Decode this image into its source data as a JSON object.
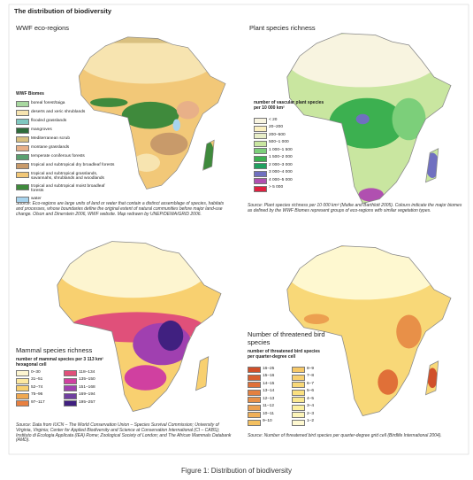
{
  "title": "The distribution of biodiversity",
  "panels": [
    {
      "title": "WWF eco-regions",
      "legend_title": "WWF Biomes",
      "legend": [
        {
          "label": "boreal forest/taiga",
          "color": "#a8d8a0"
        },
        {
          "label": "deserts and xeric shrublands",
          "color": "#f7e4b0"
        },
        {
          "label": "flooded grasslands",
          "color": "#7fc8c0"
        },
        {
          "label": "mangroves",
          "color": "#2e6b3a"
        },
        {
          "label": "Mediterranean scrub",
          "color": "#d9c080"
        },
        {
          "label": "montane grasslands",
          "color": "#e8b088"
        },
        {
          "label": "temperate coniferous forests",
          "color": "#5aa070"
        },
        {
          "label": "tropical and subtropical dry broadleaf forests",
          "color": "#c89a6a"
        },
        {
          "label": "tropical and subtropical grasslands, savannahs, shrublands and woodlands",
          "color": "#f2c878"
        },
        {
          "label": "tropical and subtropical moist broadleaf forests",
          "color": "#3f8a3c"
        },
        {
          "label": "water",
          "color": "#a8d4ee"
        }
      ],
      "source": "Source: Eco-regions are large units of land or water that contain a distinct assemblage of species, habitats and processes, whose boundaries define the original extent of natural communities before major land-use change. Olson and Dinerstein 2006, WWF website. Map redrawn by UNEP/DEWA/GRID 2006."
    },
    {
      "title": "Plant species richness",
      "legend_title": "number of vascular plant species per 10 000 km²",
      "legend": [
        {
          "label": "< 20",
          "color": "#f8f4e0"
        },
        {
          "label": "20–200",
          "color": "#fbf0c0"
        },
        {
          "label": "200–500",
          "color": "#e8eec8"
        },
        {
          "label": "500–1 000",
          "color": "#c9e6a0"
        },
        {
          "label": "1 000–1 500",
          "color": "#7ccf7a"
        },
        {
          "label": "1 500–2 000",
          "color": "#3cb050"
        },
        {
          "label": "2 000–3 000",
          "color": "#20a060"
        },
        {
          "label": "3 000–4 000",
          "color": "#7070c0"
        },
        {
          "label": "4 000–5 000",
          "color": "#b050b0"
        },
        {
          "label": "> 5 000",
          "color": "#e02040"
        }
      ],
      "source": "Source: Plant species richness per 10 000 km² (Mutke and Barthlott 2005). Colours indicate the major biomes as defined by the WWF Biomes represent groups of eco-regions with similar vegetation types."
    },
    {
      "title": "Mammal species richness",
      "legend_title": "number of mammal species per 3 113 km² hexagonal cell",
      "legend": [
        {
          "label": "0–30",
          "color": "#fdf5d0"
        },
        {
          "label": "31–51",
          "color": "#fce8a0"
        },
        {
          "label": "52–74",
          "color": "#f8d070"
        },
        {
          "label": "75–96",
          "color": "#f0a850"
        },
        {
          "label": "97–117",
          "color": "#e88040"
        },
        {
          "label": "118–134",
          "color": "#e0507a"
        },
        {
          "label": "135–150",
          "color": "#d040a0"
        },
        {
          "label": "151–168",
          "color": "#a040b0"
        },
        {
          "label": "169–194",
          "color": "#7040a0"
        },
        {
          "label": "195–257",
          "color": "#402080"
        }
      ],
      "source": "Source: Data from IUCN – The World Conservation Union – Species Survival Commission; University of Virginia, Virginia; Center for Applied Biodiversity and Science at Conservation International (CI – CABS); Instituto di Ecologia Applicata (IEA) Rome; Zoological Society of London; and The African Mammals Databank (AMD)."
    },
    {
      "title": "Number of threatened bird species",
      "legend_title": "number of threatened bird species per quarter-degree cell",
      "legend": [
        {
          "label": "16–25",
          "color": "#d0502a"
        },
        {
          "label": "15–16",
          "color": "#d86030"
        },
        {
          "label": "14–15",
          "color": "#e07038"
        },
        {
          "label": "13–14",
          "color": "#e48040"
        },
        {
          "label": "12–13",
          "color": "#e89048"
        },
        {
          "label": "11–12",
          "color": "#eca050"
        },
        {
          "label": "10–11",
          "color": "#f0b058"
        },
        {
          "label": "9–10",
          "color": "#f4c060"
        },
        {
          "label": "8–9",
          "color": "#f6c868"
        },
        {
          "label": "7–8",
          "color": "#f8d070"
        },
        {
          "label": "6–7",
          "color": "#f8d878"
        },
        {
          "label": "5–6",
          "color": "#fae080"
        },
        {
          "label": "4–5",
          "color": "#fae890"
        },
        {
          "label": "3–4",
          "color": "#fcf0a0"
        },
        {
          "label": "2–3",
          "color": "#fcf4b8"
        },
        {
          "label": "1–2",
          "color": "#fef8d0"
        }
      ],
      "source": "Source: Number of threatened bird species per quarter-degree grid cell (Birdlife International 2004)."
    }
  ],
  "caption": "Figure 1: Distribution of biodiversity"
}
